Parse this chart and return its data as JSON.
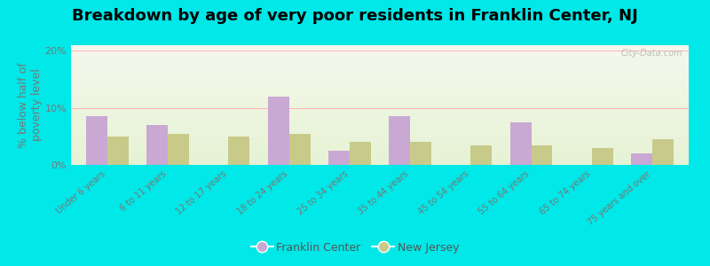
{
  "title": "Breakdown by age of very poor residents in Franklin Center, NJ",
  "ylabel": "% below half of\npoverty level",
  "categories": [
    "Under 6 years",
    "6 to 11 years",
    "12 to 17 years",
    "18 to 24 years",
    "25 to 34 years",
    "35 to 44 years",
    "45 to 54 years",
    "55 to 64 years",
    "65 to 74 years",
    "75 years and over"
  ],
  "franklin_center": [
    8.5,
    7.0,
    0.0,
    12.0,
    2.5,
    8.5,
    0.0,
    7.5,
    0.0,
    2.0
  ],
  "new_jersey": [
    5.0,
    5.5,
    5.0,
    5.5,
    4.0,
    4.0,
    3.5,
    3.5,
    3.0,
    4.5
  ],
  "fc_color": "#c9a8d4",
  "nj_color": "#c8ca8a",
  "background_outer": "#00e8e8",
  "ylim": [
    0,
    21
  ],
  "yticks": [
    0,
    10,
    20
  ],
  "ytick_labels": [
    "0%",
    "10%",
    "20%"
  ],
  "bar_width": 0.35,
  "title_fontsize": 13,
  "label_fontsize": 9,
  "tick_fontsize": 8,
  "legend_fc": "Franklin Center",
  "legend_nj": "New Jersey",
  "watermark": "City-Data.com",
  "ylabel_color": "#777777",
  "tick_color": "#777777"
}
